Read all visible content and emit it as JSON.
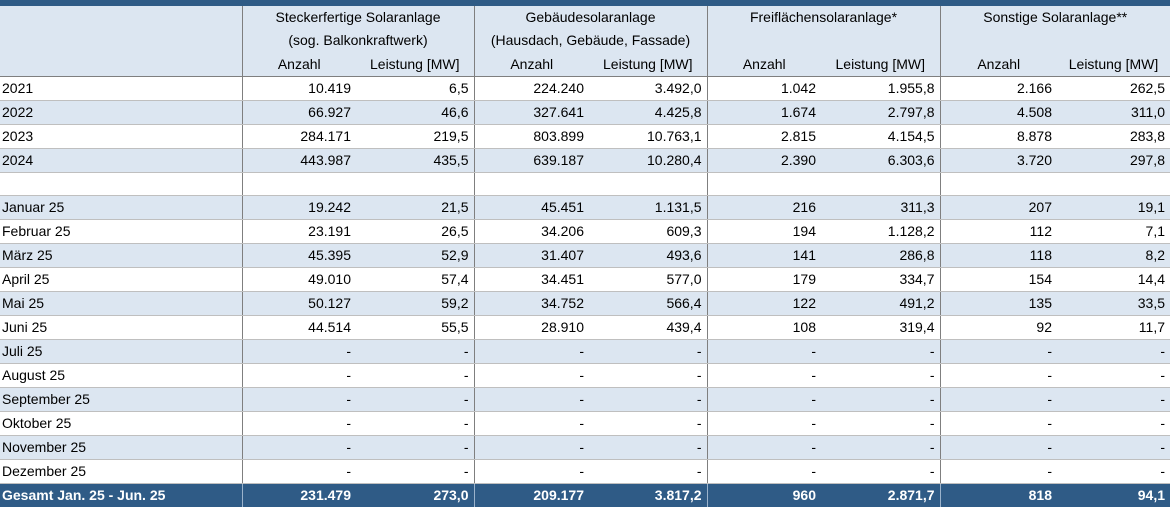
{
  "header": {
    "groups": [
      {
        "line1": "Steckerfertige Solaranlage",
        "line2": "(sog. Balkonkraftwerk)"
      },
      {
        "line1": "Gebäudesolaranlage",
        "line2": "(Hausdach, Gebäude, Fassade)"
      },
      {
        "line1": "Freiflächensolaranlage*",
        "line2": ""
      },
      {
        "line1": "Sonstige Solaranlage**",
        "line2": ""
      }
    ],
    "col_anzahl": "Anzahl",
    "col_leistung": "Leistung [MW]"
  },
  "years": [
    {
      "label": "2021",
      "values": [
        "10.419",
        "6,5",
        "224.240",
        "3.492,0",
        "1.042",
        "1.955,8",
        "2.166",
        "262,5"
      ]
    },
    {
      "label": "2022",
      "values": [
        "66.927",
        "46,6",
        "327.641",
        "4.425,8",
        "1.674",
        "2.797,8",
        "4.508",
        "311,0"
      ]
    },
    {
      "label": "2023",
      "values": [
        "284.171",
        "219,5",
        "803.899",
        "10.763,1",
        "2.815",
        "4.154,5",
        "8.878",
        "283,8"
      ]
    },
    {
      "label": "2024",
      "values": [
        "443.987",
        "435,5",
        "639.187",
        "10.280,4",
        "2.390",
        "6.303,6",
        "3.720",
        "297,8"
      ]
    }
  ],
  "months": [
    {
      "label": "Januar 25",
      "values": [
        "19.242",
        "21,5",
        "45.451",
        "1.131,5",
        "216",
        "311,3",
        "207",
        "19,1"
      ]
    },
    {
      "label": "Februar 25",
      "values": [
        "23.191",
        "26,5",
        "34.206",
        "609,3",
        "194",
        "1.128,2",
        "112",
        "7,1"
      ]
    },
    {
      "label": "März 25",
      "values": [
        "45.395",
        "52,9",
        "31.407",
        "493,6",
        "141",
        "286,8",
        "118",
        "8,2"
      ]
    },
    {
      "label": "April 25",
      "values": [
        "49.010",
        "57,4",
        "34.451",
        "577,0",
        "179",
        "334,7",
        "154",
        "14,4"
      ]
    },
    {
      "label": "Mai 25",
      "values": [
        "50.127",
        "59,2",
        "34.752",
        "566,4",
        "122",
        "491,2",
        "135",
        "33,5"
      ]
    },
    {
      "label": "Juni 25",
      "values": [
        "44.514",
        "55,5",
        "28.910",
        "439,4",
        "108",
        "319,4",
        "92",
        "11,7"
      ]
    },
    {
      "label": "Juli 25",
      "values": [
        "-",
        "-",
        "-",
        "-",
        "-",
        "-",
        "-",
        "-"
      ]
    },
    {
      "label": "August 25",
      "values": [
        "-",
        "-",
        "-",
        "-",
        "-",
        "-",
        "-",
        "-"
      ]
    },
    {
      "label": "September 25",
      "values": [
        "-",
        "-",
        "-",
        "-",
        "-",
        "-",
        "-",
        "-"
      ]
    },
    {
      "label": "Oktober 25",
      "values": [
        "-",
        "-",
        "-",
        "-",
        "-",
        "-",
        "-",
        "-"
      ]
    },
    {
      "label": "November 25",
      "values": [
        "-",
        "-",
        "-",
        "-",
        "-",
        "-",
        "-",
        "-"
      ]
    },
    {
      "label": "Dezember 25",
      "values": [
        "-",
        "-",
        "-",
        "-",
        "-",
        "-",
        "-",
        "-"
      ]
    }
  ],
  "total": {
    "label": "Gesamt Jan. 25 - Jun. 25",
    "values": [
      "231.479",
      "273,0",
      "209.177",
      "3.817,2",
      "960",
      "2.871,7",
      "818",
      "94,1"
    ]
  },
  "colors": {
    "header_bg": "#dce6f1",
    "total_bg": "#2f5b86",
    "band_bg": "#dce6f1"
  }
}
